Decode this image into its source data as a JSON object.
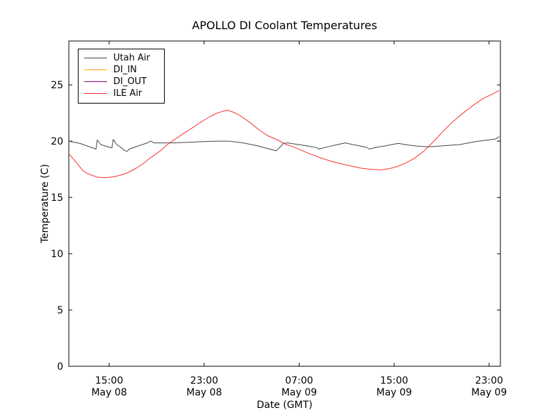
{
  "chart_data": {
    "type": "line",
    "title": "APOLLO DI Coolant Temperatures",
    "xlabel": "Date (GMT)",
    "ylabel": "Temperature (C)",
    "x_unit": "hours since May 08 00:00 GMT",
    "xlim": [
      11.6,
      47.95
    ],
    "ylim": [
      0,
      28.9
    ],
    "grid": false,
    "legend_position": "upper left",
    "xticks": [
      {
        "t": 15,
        "time": "15:00",
        "date": "May 08"
      },
      {
        "t": 23,
        "time": "23:00",
        "date": "May 08"
      },
      {
        "t": 31,
        "time": "07:00",
        "date": "May 09"
      },
      {
        "t": 39,
        "time": "15:00",
        "date": "May 09"
      },
      {
        "t": 47,
        "time": "23:00",
        "date": "May 09"
      }
    ],
    "yticks": [
      0,
      5,
      10,
      15,
      20,
      25
    ],
    "series": [
      {
        "name": "Utah Air",
        "color": "#444444",
        "points": [
          [
            11.6,
            20.0
          ],
          [
            12.54,
            19.8
          ],
          [
            13.88,
            19.3
          ],
          [
            14.0,
            20.1
          ],
          [
            14.29,
            19.7
          ],
          [
            15.05,
            19.45
          ],
          [
            15.23,
            19.4
          ],
          [
            15.34,
            20.15
          ],
          [
            15.64,
            19.7
          ],
          [
            16.04,
            19.4
          ],
          [
            16.34,
            19.15
          ],
          [
            16.51,
            19.1
          ],
          [
            16.69,
            19.3
          ],
          [
            17.51,
            19.6
          ],
          [
            18.21,
            19.85
          ],
          [
            18.5,
            20.0
          ],
          [
            18.79,
            19.85
          ],
          [
            20.43,
            19.85
          ],
          [
            21.6,
            19.9
          ],
          [
            22.77,
            19.95
          ],
          [
            23.94,
            20.0
          ],
          [
            25.11,
            20.0
          ],
          [
            26.28,
            19.85
          ],
          [
            27.45,
            19.6
          ],
          [
            28.5,
            19.3
          ],
          [
            28.91,
            19.2
          ],
          [
            29.08,
            19.15
          ],
          [
            29.32,
            19.4
          ],
          [
            29.67,
            19.8
          ],
          [
            30.02,
            19.85
          ],
          [
            30.96,
            19.7
          ],
          [
            32.13,
            19.5
          ],
          [
            32.54,
            19.4
          ],
          [
            32.66,
            19.3
          ],
          [
            33.42,
            19.5
          ],
          [
            34.24,
            19.7
          ],
          [
            34.88,
            19.85
          ],
          [
            35.75,
            19.65
          ],
          [
            36.69,
            19.45
          ],
          [
            36.92,
            19.3
          ],
          [
            37.51,
            19.45
          ],
          [
            38.33,
            19.6
          ],
          [
            39.03,
            19.75
          ],
          [
            39.38,
            19.8
          ],
          [
            40.2,
            19.65
          ],
          [
            41.02,
            19.55
          ],
          [
            41.95,
            19.5
          ],
          [
            43.24,
            19.6
          ],
          [
            44.53,
            19.7
          ],
          [
            45.81,
            19.95
          ],
          [
            46.86,
            20.1
          ],
          [
            47.56,
            20.2
          ],
          [
            47.85,
            20.4
          ]
        ]
      },
      {
        "name": "DI_IN",
        "color": "#ffa500",
        "points": []
      },
      {
        "name": "DI_OUT",
        "color": "#800080",
        "points": []
      },
      {
        "name": "ILE Air",
        "color": "#f83030",
        "points": [
          [
            11.6,
            18.9
          ],
          [
            11.95,
            18.45
          ],
          [
            12.24,
            18.1
          ],
          [
            12.77,
            17.4
          ],
          [
            13.12,
            17.15
          ],
          [
            13.59,
            16.95
          ],
          [
            14.0,
            16.8
          ],
          [
            14.58,
            16.75
          ],
          [
            15.17,
            16.8
          ],
          [
            15.87,
            16.95
          ],
          [
            16.57,
            17.2
          ],
          [
            17.27,
            17.6
          ],
          [
            17.86,
            18.0
          ],
          [
            18.38,
            18.45
          ],
          [
            19.26,
            19.1
          ],
          [
            20.02,
            19.8
          ],
          [
            20.72,
            20.3
          ],
          [
            21.42,
            20.8
          ],
          [
            22.18,
            21.3
          ],
          [
            22.88,
            21.8
          ],
          [
            23.53,
            22.2
          ],
          [
            24.11,
            22.5
          ],
          [
            24.64,
            22.68
          ],
          [
            24.93,
            22.75
          ],
          [
            25.4,
            22.6
          ],
          [
            25.99,
            22.3
          ],
          [
            26.75,
            21.75
          ],
          [
            27.57,
            21.05
          ],
          [
            28.32,
            20.5
          ],
          [
            29.2,
            20.1
          ],
          [
            29.91,
            19.7
          ],
          [
            30.37,
            19.55
          ],
          [
            31.95,
            18.85
          ],
          [
            32.71,
            18.55
          ],
          [
            33.59,
            18.25
          ],
          [
            34.47,
            18.0
          ],
          [
            35.35,
            17.8
          ],
          [
            36.22,
            17.6
          ],
          [
            37.1,
            17.5
          ],
          [
            37.86,
            17.45
          ],
          [
            38.56,
            17.55
          ],
          [
            39.26,
            17.75
          ],
          [
            39.96,
            18.05
          ],
          [
            40.67,
            18.45
          ],
          [
            41.37,
            19.0
          ],
          [
            41.49,
            19.1
          ],
          [
            42.07,
            19.7
          ],
          [
            42.65,
            20.35
          ],
          [
            43.24,
            21.0
          ],
          [
            43.82,
            21.6
          ],
          [
            44.41,
            22.15
          ],
          [
            45.11,
            22.75
          ],
          [
            45.81,
            23.3
          ],
          [
            46.51,
            23.8
          ],
          [
            47.21,
            24.15
          ],
          [
            47.85,
            24.5
          ]
        ]
      }
    ]
  }
}
